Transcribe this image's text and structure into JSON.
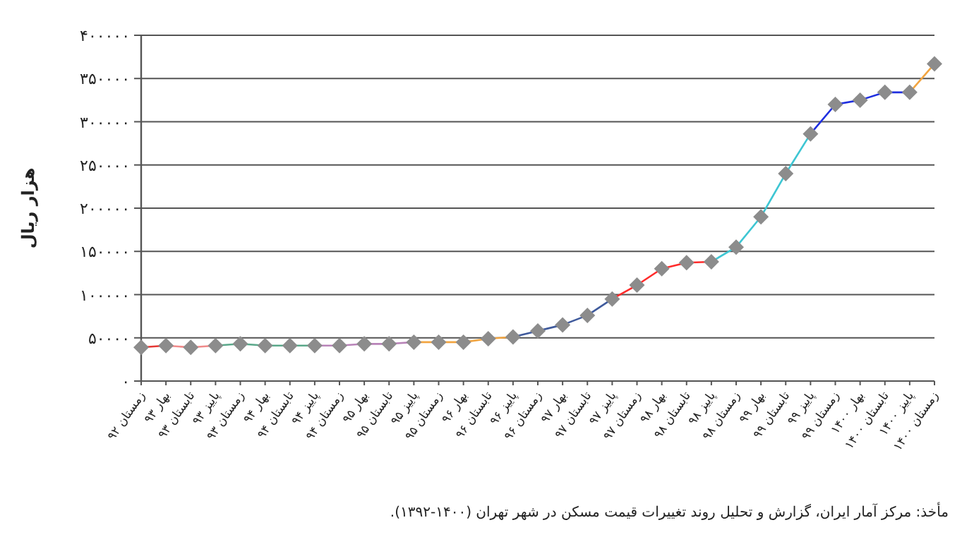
{
  "chart_data": {
    "type": "line",
    "ylabel": "هزار ریال",
    "annotations": [
      "مأخذ: مرکز آمار ایران، گزارش و تحلیل روند تغییرات قیمت مسکن در شهر تهران (۱۴۰۰-۱۳۹۲)."
    ],
    "categories": [
      "زمستان ۹۲",
      "بهار ۹۳",
      "تابستان ۹۳",
      "پاییز ۹۳",
      "زمستان ۹۳",
      "بهار ۹۴",
      "تابستان ۹۴",
      "پاییز ۹۴",
      "زمستان ۹۴",
      "بهار ۹۵",
      "تابستان ۹۵",
      "پاییز ۹۵",
      "زمستان ۹۵",
      "بهار ۹۶",
      "تابستان ۹۶",
      "پاییز ۹۶",
      "زمستان ۹۶",
      "بهار ۹۷",
      "تابستان ۹۷",
      "پاییز ۹۷",
      "زمستان ۹۷",
      "بهار ۹۸",
      "تابستان ۹۸",
      "پاییز ۹۸",
      "زمستان ۹۸",
      "بهار ۹۹",
      "تابستان ۹۹",
      "پاییز ۹۹",
      "زمستان ۹۹",
      "بهار ۱۴۰۰",
      "تابستان ۱۴۰۰",
      "پاییز ۱۴۰۰",
      "زمستان ۱۴۰۰"
    ],
    "ylim": [
      0,
      400000
    ],
    "yticks": [
      {
        "value": 0,
        "label": "۰"
      },
      {
        "value": 50000,
        "label": "۵۰۰۰۰"
      },
      {
        "value": 100000,
        "label": "۱۰۰۰۰۰"
      },
      {
        "value": 150000,
        "label": "۱۵۰۰۰۰"
      },
      {
        "value": 200000,
        "label": "۲۰۰۰۰۰"
      },
      {
        "value": 250000,
        "label": "۲۵۰۰۰۰"
      },
      {
        "value": 300000,
        "label": "۳۰۰۰۰۰"
      },
      {
        "value": 350000,
        "label": "۳۵۰۰۰۰"
      },
      {
        "value": 400000,
        "label": "۴۰۰۰۰۰"
      }
    ],
    "grid": "y",
    "series": [
      {
        "type": "line",
        "color": "#e53935",
        "values": [
          39000,
          41000,
          null,
          null,
          null,
          null,
          null,
          null,
          null,
          null,
          null,
          null,
          null,
          null,
          null,
          null,
          null,
          null,
          null,
          null,
          null,
          null,
          null,
          null,
          null,
          null,
          null,
          null,
          null,
          null,
          null,
          null,
          null
        ]
      },
      {
        "type": "line",
        "color": "#f08a8a",
        "values": [
          null,
          41000,
          39000,
          41000,
          null,
          null,
          null,
          null,
          null,
          null,
          null,
          null,
          null,
          null,
          null,
          null,
          null,
          null,
          null,
          null,
          null,
          null,
          null,
          null,
          null,
          null,
          null,
          null,
          null,
          null,
          null,
          null,
          null
        ]
      },
      {
        "type": "line",
        "color": "#5aa88a",
        "values": [
          null,
          null,
          null,
          41000,
          43000,
          41000,
          41000,
          41000,
          null,
          null,
          null,
          null,
          null,
          null,
          null,
          null,
          null,
          null,
          null,
          null,
          null,
          null,
          null,
          null,
          null,
          null,
          null,
          null,
          null,
          null,
          null,
          null,
          null
        ]
      },
      {
        "type": "line",
        "color": "#b883b8",
        "values": [
          null,
          null,
          null,
          null,
          null,
          null,
          null,
          41000,
          41000,
          43000,
          43000,
          45000,
          null,
          null,
          null,
          null,
          null,
          null,
          null,
          null,
          null,
          null,
          null,
          null,
          null,
          null,
          null,
          null,
          null,
          null,
          null,
          null,
          null
        ]
      },
      {
        "type": "line",
        "color": "#f2a541",
        "values": [
          null,
          null,
          null,
          null,
          null,
          null,
          null,
          null,
          null,
          null,
          null,
          45000,
          45000,
          45000,
          49000,
          51000,
          null,
          null,
          null,
          null,
          null,
          null,
          null,
          null,
          null,
          null,
          null,
          null,
          null,
          null,
          null,
          null,
          null
        ]
      },
      {
        "type": "line",
        "color": "#3f5a9c",
        "values": [
          null,
          null,
          null,
          null,
          null,
          null,
          null,
          null,
          null,
          null,
          null,
          null,
          null,
          null,
          null,
          51000,
          58000,
          65000,
          76000,
          95000,
          null,
          null,
          null,
          null,
          null,
          null,
          null,
          null,
          null,
          null,
          null,
          null,
          null
        ]
      },
      {
        "type": "line",
        "color": "#ff2b2b",
        "values": [
          null,
          null,
          null,
          null,
          null,
          null,
          null,
          null,
          null,
          null,
          null,
          null,
          null,
          null,
          null,
          null,
          null,
          null,
          null,
          95000,
          111000,
          130000,
          137000,
          138000,
          null,
          null,
          null,
          null,
          null,
          null,
          null,
          null,
          null
        ]
      },
      {
        "type": "line",
        "color": "#3ec6d3",
        "values": [
          null,
          null,
          null,
          null,
          null,
          null,
          null,
          null,
          null,
          null,
          null,
          null,
          null,
          null,
          null,
          null,
          null,
          null,
          null,
          null,
          null,
          null,
          null,
          138000,
          155000,
          190000,
          240000,
          286000,
          null,
          null,
          null,
          null,
          null
        ]
      },
      {
        "type": "line",
        "color": "#1f2fe0",
        "values": [
          null,
          null,
          null,
          null,
          null,
          null,
          null,
          null,
          null,
          null,
          null,
          null,
          null,
          null,
          null,
          null,
          null,
          null,
          null,
          null,
          null,
          null,
          null,
          null,
          null,
          null,
          null,
          286000,
          320000,
          325000,
          334000,
          334000,
          null
        ]
      },
      {
        "type": "line",
        "color": "#f2a541",
        "values": [
          null,
          null,
          null,
          null,
          null,
          null,
          null,
          null,
          null,
          null,
          null,
          null,
          null,
          null,
          null,
          null,
          null,
          null,
          null,
          null,
          null,
          null,
          null,
          null,
          null,
          null,
          null,
          null,
          null,
          null,
          null,
          334000,
          367000
        ]
      },
      {
        "type": "scatter",
        "marker": "diamond",
        "color": "#8c8c8c",
        "values": [
          39000,
          41000,
          39000,
          41000,
          43000,
          41000,
          41000,
          41000,
          41000,
          43000,
          43000,
          45000,
          45000,
          45000,
          49000,
          51000,
          58000,
          65000,
          76000,
          95000,
          111000,
          130000,
          137000,
          138000,
          155000,
          190000,
          240000,
          286000,
          320000,
          325000,
          334000,
          334000,
          367000
        ]
      }
    ]
  }
}
